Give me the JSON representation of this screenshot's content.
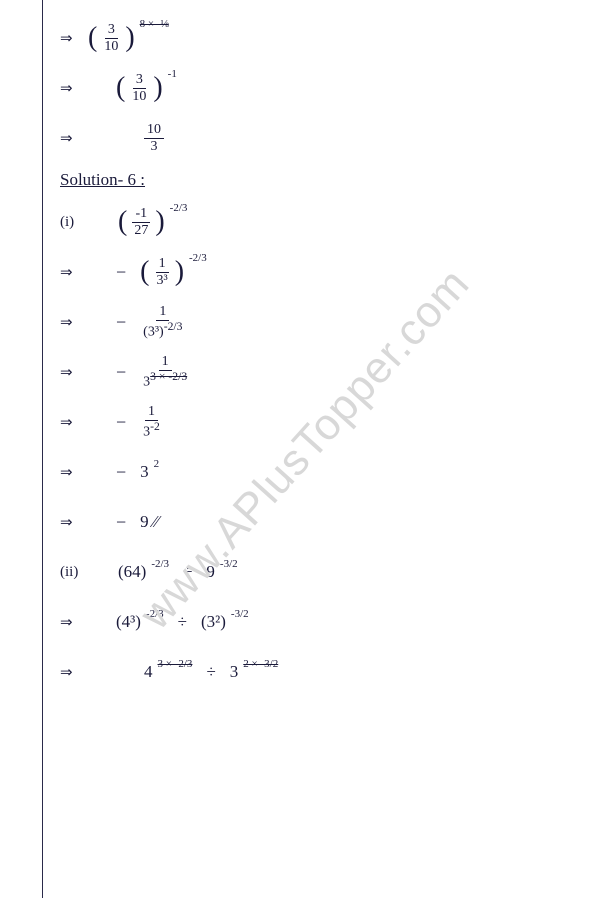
{
  "watermark": "www.APlusTopper.com",
  "rows": [
    {
      "implies": "⇒",
      "expr_type": "paren_frac_pow",
      "num": "3",
      "den": "10",
      "pow": "8 × -⅛"
    },
    {
      "implies": "⇒",
      "expr_type": "paren_frac_pow",
      "num": "3",
      "den": "10",
      "pow": "-1"
    },
    {
      "implies": "⇒",
      "expr_type": "frac",
      "num": "10",
      "den": "3"
    }
  ],
  "heading": "Solution- 6 :",
  "part1_label": "(i)",
  "part1": [
    {
      "implies": "",
      "expr_type": "paren_frac_pow",
      "num": "-1",
      "den": "27",
      "pow": "-2/3"
    },
    {
      "implies": "⇒",
      "expr_type": "neg_paren_frac_pow",
      "num": "1",
      "den": "3³",
      "pow": "-2/3"
    },
    {
      "implies": "⇒",
      "expr_type": "neg_frac_over_pow",
      "num": "1",
      "den_base": "(3³)",
      "den_pow": "-2/3"
    },
    {
      "implies": "⇒",
      "expr_type": "neg_frac_over_pow",
      "num": "1",
      "den_base": "3",
      "den_pow": "3 × -2/3"
    },
    {
      "implies": "⇒",
      "expr_type": "neg_frac_over_pow",
      "num": "1",
      "den_base": "3",
      "den_pow": "-2"
    },
    {
      "implies": "⇒",
      "expr_type": "neg_pow",
      "base": "3",
      "pow": "2"
    },
    {
      "implies": "⇒",
      "expr_type": "neg_plain",
      "text": "9 ⁄⁄"
    }
  ],
  "part2_label": "(ii)",
  "part2": [
    {
      "implies": "",
      "expr_type": "div_pow",
      "l_base": "(64)",
      "l_pow": "-2/3",
      "r_base": "9",
      "r_pow": "-3/2"
    },
    {
      "implies": "⇒",
      "expr_type": "div_pow",
      "l_base": "(4³)",
      "l_pow": "-2/3",
      "r_base": "(3²)",
      "r_pow": "-3/2"
    },
    {
      "implies": "⇒",
      "expr_type": "div_pow",
      "l_base": "4",
      "l_pow": "3 × -2/3",
      "r_base": "3",
      "r_pow": "2 × -3/2"
    }
  ]
}
